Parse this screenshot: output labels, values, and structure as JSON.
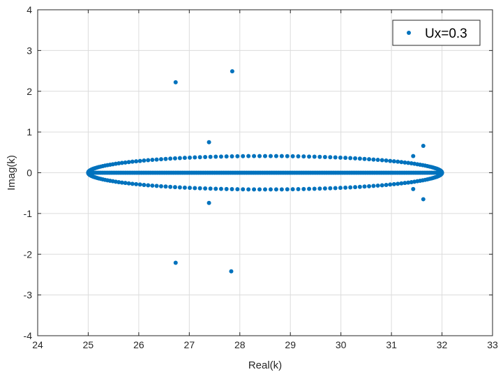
{
  "chart_data": {
    "type": "scatter",
    "xlabel": "Real(k)",
    "ylabel": "Imag(k)",
    "xlim": [
      24,
      33
    ],
    "ylim": [
      -4,
      4
    ],
    "xticks": [
      24,
      25,
      26,
      27,
      28,
      29,
      30,
      31,
      32,
      33
    ],
    "yticks": [
      -4,
      -3,
      -2,
      -1,
      0,
      1,
      2,
      3,
      4
    ],
    "grid": true,
    "legend_position": "top-right",
    "marker_color": "#0072BD",
    "series": [
      {
        "name": "Ux=0.3",
        "ellipse": {
          "x_min": 25.0,
          "x_max": 32.0,
          "imag_peak": 0.41,
          "point_count": 200
        },
        "real_axis_segment": {
          "x_min": 25.0,
          "x_max": 32.0,
          "imag": 0.0,
          "point_count": 200
        },
        "isolated_points": [
          {
            "x": 26.73,
            "y": 2.22
          },
          {
            "x": 27.85,
            "y": 2.49
          },
          {
            "x": 27.39,
            "y": 0.75
          },
          {
            "x": 31.43,
            "y": 0.41
          },
          {
            "x": 31.63,
            "y": 0.66
          },
          {
            "x": 26.73,
            "y": -2.21
          },
          {
            "x": 27.83,
            "y": -2.42
          },
          {
            "x": 27.39,
            "y": -0.74
          },
          {
            "x": 31.43,
            "y": -0.4
          },
          {
            "x": 31.63,
            "y": -0.65
          }
        ]
      }
    ]
  }
}
